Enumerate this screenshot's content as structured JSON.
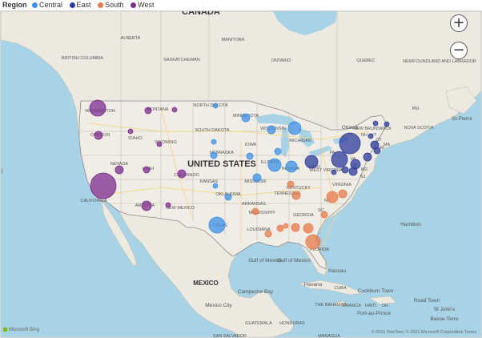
{
  "legend": {
    "title": "Region",
    "items": [
      {
        "label": "Central",
        "color": "#3d8fe6"
      },
      {
        "label": "East",
        "color": "#2d3b9c"
      },
      {
        "label": "South",
        "color": "#e8794a"
      },
      {
        "label": "West",
        "color": "#7d2c8f"
      }
    ]
  },
  "map": {
    "colors": {
      "ocean": "#a8d3e6",
      "land": "#eceae0",
      "us_land": "#efede6",
      "border": "#888888",
      "road": "#f5d580"
    },
    "country_labels": [
      "CANADA",
      "UNITED STATES",
      "MEXICO"
    ],
    "place_labels": [
      {
        "text": "ALBERTA"
      },
      {
        "text": "MANITOBA"
      },
      {
        "text": "BRITISH COLUMBIA"
      },
      {
        "text": "SASKATCHEWAN"
      },
      {
        "text": "ONTARIO"
      },
      {
        "text": "QUEBEC"
      },
      {
        "text": "NEWFOUNDLAND AND LABRADOR"
      },
      {
        "text": "WASHINGTON"
      },
      {
        "text": "MONTANA"
      },
      {
        "text": "NORTH DAKOTA"
      },
      {
        "text": "MINNESOTA"
      },
      {
        "text": "OREGON"
      },
      {
        "text": "IDAHO"
      },
      {
        "text": "WYOMING"
      },
      {
        "text": "SOUTH DAKOTA"
      },
      {
        "text": "WISCONSIN"
      },
      {
        "text": "MICHIGAN"
      },
      {
        "text": "NEBRASKA"
      },
      {
        "text": "IOWA"
      },
      {
        "text": "NEVADA"
      },
      {
        "text": "UTAH"
      },
      {
        "text": "COLORADO"
      },
      {
        "text": "ILLINOIS"
      },
      {
        "text": "INDIANA"
      },
      {
        "text": "OHIO"
      },
      {
        "text": "WEST VIRGINIA"
      },
      {
        "text": "KANSAS"
      },
      {
        "text": "MISSOURI"
      },
      {
        "text": "KENTUCKY"
      },
      {
        "text": "VIRGINIA"
      },
      {
        "text": "CALIFORNIA"
      },
      {
        "text": "ARIZONA"
      },
      {
        "text": "NEW MEXICO"
      },
      {
        "text": "OKLAHOMA"
      },
      {
        "text": "ARKANSAS"
      },
      {
        "text": "TENNESSEE"
      },
      {
        "text": "TEXAS"
      },
      {
        "text": "MISSISSIPPI"
      },
      {
        "text": "GEORGIA"
      },
      {
        "text": "LOUISIANA"
      },
      {
        "text": "FLORIDA"
      },
      {
        "text": "Ottawa"
      },
      {
        "text": "NEW BRUNSWICK"
      },
      {
        "text": "NOVA SCOTIA"
      },
      {
        "text": "PEI"
      },
      {
        "text": "St-Pierre"
      },
      {
        "text": "Hamilton"
      },
      {
        "text": "Gulf of Mexico"
      },
      {
        "text": "Gulf of Mexico"
      },
      {
        "text": "Campeche Bay"
      },
      {
        "text": "Mexico City"
      },
      {
        "text": "Havana"
      },
      {
        "text": "CUBA"
      },
      {
        "text": "Nassau"
      },
      {
        "text": "Cockburn Town"
      },
      {
        "text": "THE BAHAMAS"
      },
      {
        "text": "JAMAICA"
      },
      {
        "text": "HAITI"
      },
      {
        "text": "DR"
      },
      {
        "text": "Road Town"
      },
      {
        "text": "St John's"
      },
      {
        "text": "Basse-Terre"
      },
      {
        "text": "GUATEMALA"
      },
      {
        "text": "HONDURAS"
      },
      {
        "text": "SAN SALVADOR"
      },
      {
        "text": "MANAGUA"
      },
      {
        "text": "Port-au-Prince"
      },
      {
        "text": "VA"
      },
      {
        "text": "DE"
      },
      {
        "text": "MD"
      },
      {
        "text": "NJ"
      },
      {
        "text": "CT"
      },
      {
        "text": "VT"
      },
      {
        "text": "NH"
      },
      {
        "text": "MA"
      },
      {
        "text": "RI"
      },
      {
        "text": "PA"
      },
      {
        "text": "NC"
      },
      {
        "text": "SC"
      }
    ],
    "bubbles": [
      {
        "region": "West",
        "place": "Washington",
        "size": 10
      },
      {
        "region": "West",
        "place": "Oregon",
        "size": 5
      },
      {
        "region": "West",
        "place": "California",
        "size": 16
      },
      {
        "region": "West",
        "place": "Nevada",
        "size": 5
      },
      {
        "region": "West",
        "place": "Idaho",
        "size": 3
      },
      {
        "region": "West",
        "place": "Montana",
        "size": 4
      },
      {
        "region": "West",
        "place": "Wyoming",
        "size": 3
      },
      {
        "region": "West",
        "place": "Utah",
        "size": 4
      },
      {
        "region": "West",
        "place": "Colorado",
        "size": 5
      },
      {
        "region": "West",
        "place": "Arizona",
        "size": 6
      },
      {
        "region": "West",
        "place": "New Mexico",
        "size": 3
      },
      {
        "region": "West",
        "place": "Montana East",
        "size": 3
      },
      {
        "region": "Central",
        "place": "Texas",
        "size": 10
      },
      {
        "region": "Central",
        "place": "Oklahoma",
        "size": 4
      },
      {
        "region": "Central",
        "place": "Kansas",
        "size": 3
      },
      {
        "region": "Central",
        "place": "Nebraska",
        "size": 4
      },
      {
        "region": "Central",
        "place": "South Dakota",
        "size": 3
      },
      {
        "region": "Central",
        "place": "North Dakota",
        "size": 3
      },
      {
        "region": "Central",
        "place": "Minnesota",
        "size": 5
      },
      {
        "region": "Central",
        "place": "Iowa",
        "size": 4
      },
      {
        "region": "Central",
        "place": "Missouri",
        "size": 5
      },
      {
        "region": "Central",
        "place": "Wisconsin",
        "size": 5
      },
      {
        "region": "Central",
        "place": "Illinois",
        "size": 8
      },
      {
        "region": "Central",
        "place": "Indiana",
        "size": 7
      },
      {
        "region": "Central",
        "place": "Michigan",
        "size": 8
      },
      {
        "region": "Central",
        "place": "Chicago area",
        "size": 4
      },
      {
        "region": "East",
        "place": "Ohio",
        "size": 8
      },
      {
        "region": "East",
        "place": "New York",
        "size": 13
      },
      {
        "region": "East",
        "place": "Pennsylvania",
        "size": 10
      },
      {
        "region": "East",
        "place": "West Virginia",
        "size": 3
      },
      {
        "region": "East",
        "place": "Maryland",
        "size": 4
      },
      {
        "region": "East",
        "place": "Delaware",
        "size": 5
      },
      {
        "region": "East",
        "place": "New Jersey",
        "size": 6
      },
      {
        "region": "East",
        "place": "Connecticut",
        "size": 5
      },
      {
        "region": "East",
        "place": "Massachusetts",
        "size": 5
      },
      {
        "region": "East",
        "place": "Vermont",
        "size": 3
      },
      {
        "region": "East",
        "place": "New Hampshire",
        "size": 3
      },
      {
        "region": "East",
        "place": "Maine",
        "size": 3
      },
      {
        "region": "East",
        "place": "Rhode Island",
        "size": 4
      },
      {
        "region": "South",
        "place": "Virginia",
        "size": 5
      },
      {
        "region": "South",
        "place": "North Carolina",
        "size": 7
      },
      {
        "region": "South",
        "place": "South Carolina",
        "size": 4
      },
      {
        "region": "South",
        "place": "Tennessee",
        "size": 5
      },
      {
        "region": "South",
        "place": "Georgia",
        "size": 6
      },
      {
        "region": "South",
        "place": "Florida",
        "size": 9
      },
      {
        "region": "South",
        "place": "Alabama",
        "size": 5
      },
      {
        "region": "South",
        "place": "Mississippi",
        "size": 4
      },
      {
        "region": "South",
        "place": "Louisiana",
        "size": 4
      },
      {
        "region": "South",
        "place": "Arkansas",
        "size": 4
      },
      {
        "region": "South",
        "place": "Kentucky",
        "size": 4
      },
      {
        "region": "South",
        "place": "Georgia South",
        "size": 3
      }
    ]
  },
  "controls": {
    "zoom_in": "+",
    "zoom_out": "−"
  },
  "attribution": {
    "bing": "Microsoft Bing",
    "copyright": "© 2021 TomTom, © 2021 Microsoft Corporation  Terms"
  }
}
